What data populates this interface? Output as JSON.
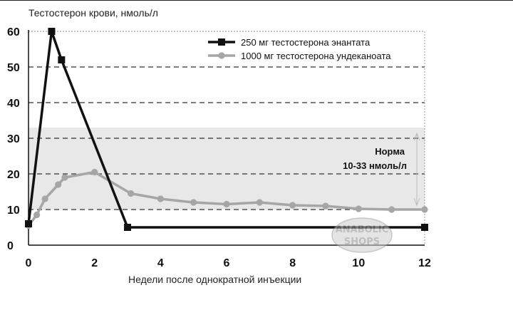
{
  "chart_data": {
    "type": "line",
    "ylabel": "Тестостерон крови, нмоль/л",
    "xlabel": "Недели после однократной инъекции",
    "xlim": [
      0,
      12
    ],
    "ylim": [
      0,
      60
    ],
    "x_ticks": [
      "0",
      "2",
      "4",
      "6",
      "8",
      "10",
      "12"
    ],
    "y_ticks": [
      "0",
      "10",
      "20",
      "30",
      "40",
      "50",
      "60"
    ],
    "grid": "horizontal dashed at 10, 20, 30, 40, 50; dotted at 60",
    "legend_position": "top-right",
    "norm_band": {
      "label_line1": "Норма",
      "label_line2": "10-33 нмоль/л",
      "range": [
        10,
        33
      ],
      "color": "#e8e8e8"
    },
    "series": [
      {
        "name": "250 мг тестостерона энантата",
        "color": "#111111",
        "marker": "square",
        "points": [
          [
            0,
            6
          ],
          [
            0.7,
            60
          ],
          [
            1.0,
            52
          ],
          [
            3.0,
            5
          ],
          [
            12,
            5
          ]
        ]
      },
      {
        "name": "1000 мг тестостерона ундеканоата",
        "color": "#a6a6a6",
        "marker": "circle",
        "points": [
          [
            0,
            5.5
          ],
          [
            0.25,
            8.5
          ],
          [
            0.5,
            13
          ],
          [
            0.9,
            17
          ],
          [
            1.1,
            19
          ],
          [
            2.0,
            20.5
          ],
          [
            3.1,
            14.5
          ],
          [
            4.0,
            13
          ],
          [
            5.0,
            12
          ],
          [
            6.0,
            11.5
          ],
          [
            7.0,
            12
          ],
          [
            8.0,
            11.2
          ],
          [
            9.0,
            11
          ],
          [
            10.0,
            10.2
          ],
          [
            11.0,
            10
          ],
          [
            12.0,
            10
          ]
        ]
      }
    ]
  },
  "watermark": {
    "line1": "ANABOLIC",
    "line2": "SHOPS"
  }
}
